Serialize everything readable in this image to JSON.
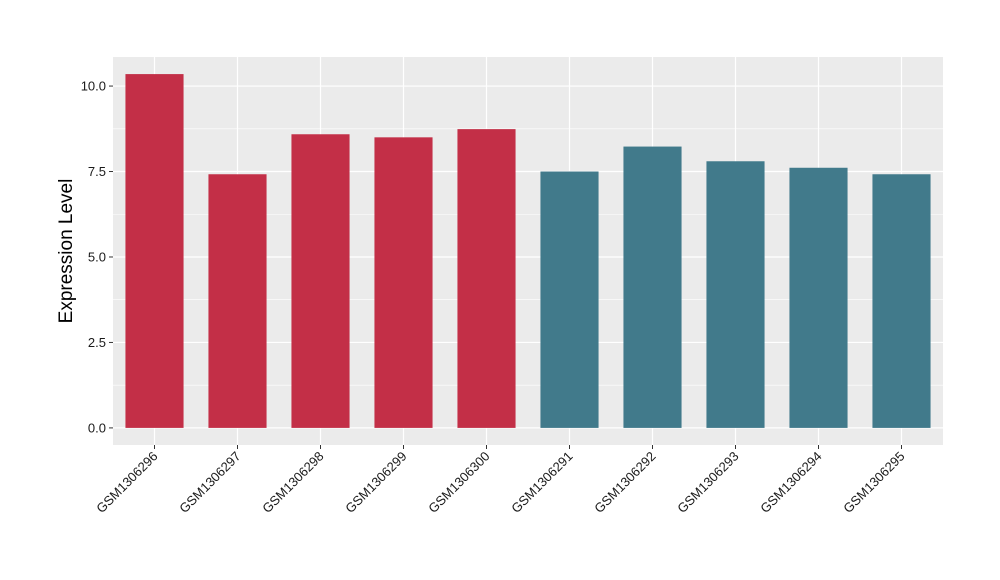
{
  "chart_data": {
    "type": "bar",
    "title": "",
    "xlabel": "",
    "ylabel": "Expression Level",
    "ylim": [
      -0.5,
      10.85
    ],
    "y_ticks": [
      0.0,
      2.5,
      5.0,
      7.5,
      10.0
    ],
    "y_tick_labels": [
      "0.0",
      "2.5",
      "5.0",
      "7.5",
      "10.0"
    ],
    "grid": true,
    "legend": "none",
    "categories": [
      "GSM1306296",
      "GSM1306297",
      "GSM1306298",
      "GSM1306299",
      "GSM1306300",
      "GSM1306291",
      "GSM1306292",
      "GSM1306293",
      "GSM1306294",
      "GSM1306295"
    ],
    "values": [
      10.35,
      7.42,
      8.59,
      8.5,
      8.74,
      7.5,
      8.23,
      7.8,
      7.61,
      7.42
    ],
    "bar_colors": [
      "#c32f47",
      "#c32f47",
      "#c32f47",
      "#c32f47",
      "#c32f47",
      "#417a8b",
      "#417a8b",
      "#417a8b",
      "#417a8b",
      "#417a8b"
    ],
    "panel_background": "#ebebeb",
    "grid_color": "#ffffff"
  }
}
